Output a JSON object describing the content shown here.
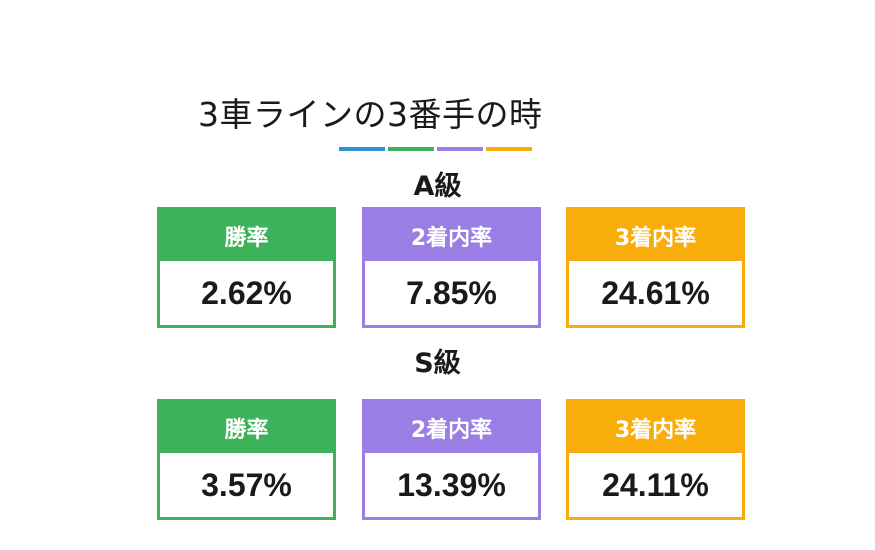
{
  "title": "3車ラインの3番手の時",
  "colors": {
    "bar": [
      "#2f8fd0",
      "#3cb35a",
      "#9a7ee6",
      "#f9ad0b"
    ],
    "win": "#3cb35a",
    "second": "#9a7ee6",
    "third": "#f9ad0b"
  },
  "sections": [
    {
      "label": "A級",
      "cards": [
        {
          "label": "勝率",
          "value": "2.62%"
        },
        {
          "label": "2着内率",
          "value": "7.85%"
        },
        {
          "label": "3着内率",
          "value": "24.61%"
        }
      ]
    },
    {
      "label": "S級",
      "cards": [
        {
          "label": "勝率",
          "value": "3.57%"
        },
        {
          "label": "2着内率",
          "value": "13.39%"
        },
        {
          "label": "3着内率",
          "value": "24.11%"
        }
      ]
    }
  ]
}
